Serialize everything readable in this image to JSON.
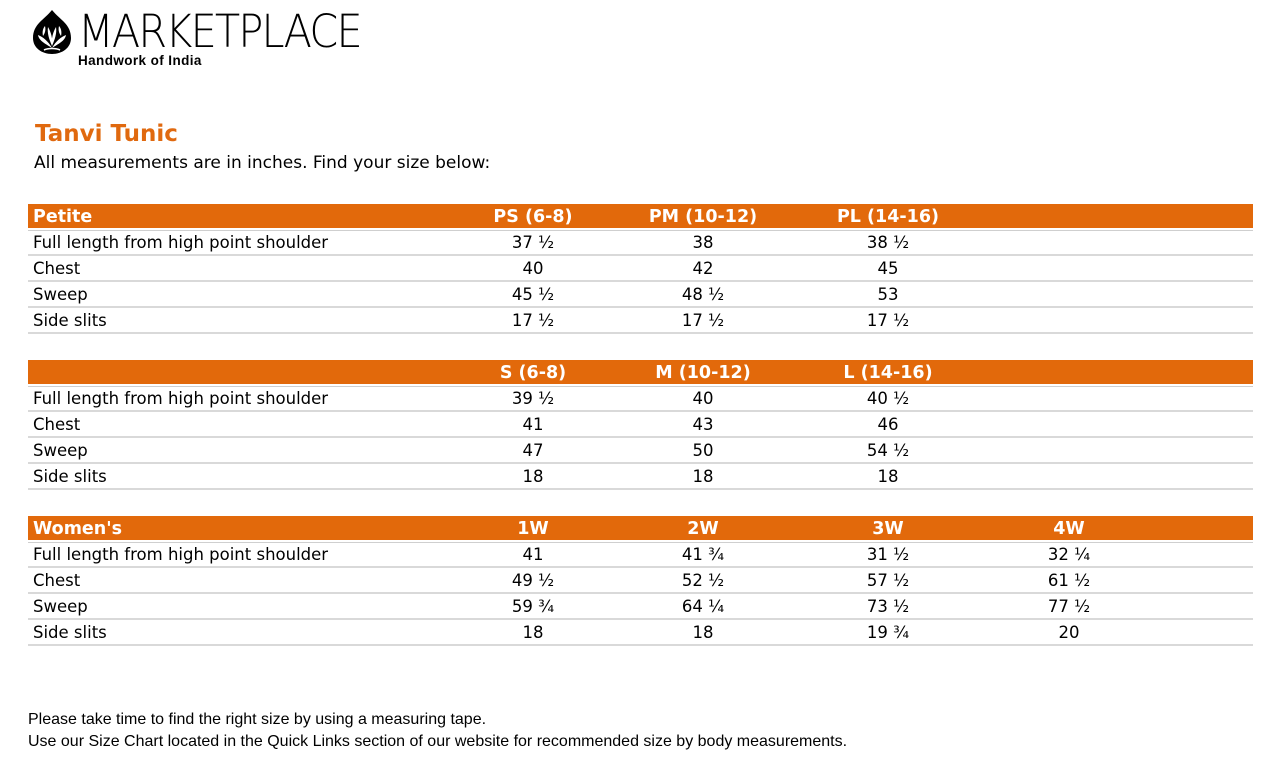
{
  "brand": {
    "name": "MARKETPLACE",
    "tagline": "Handwork of India",
    "logo_icon": "lotus-leaf-icon"
  },
  "page": {
    "title": "Tanvi Tunic",
    "subtitle": "All measurements are in inches. Find your size below:"
  },
  "colors": {
    "accent": "#e2690b",
    "title": "#e0690f",
    "row_border": "#d9d9d9"
  },
  "tables": [
    {
      "section": "Petite",
      "sizes": [
        "PS (6-8)",
        "PM (10-12)",
        "PL (14-16)"
      ],
      "rows": [
        {
          "label": "Full length from high point shoulder",
          "values": [
            "37 ½",
            "38",
            "38 ½"
          ]
        },
        {
          "label": "Chest",
          "values": [
            "40",
            "42",
            "45"
          ]
        },
        {
          "label": "Sweep",
          "values": [
            "45 ½",
            "48 ½",
            "53"
          ]
        },
        {
          "label": "Side slits",
          "values": [
            "17 ½",
            "17 ½",
            "17 ½"
          ]
        }
      ]
    },
    {
      "section": "",
      "sizes": [
        "S (6-8)",
        "M (10-12)",
        "L (14-16)"
      ],
      "rows": [
        {
          "label": "Full length from high point shoulder",
          "values": [
            "39 ½",
            "40",
            "40 ½"
          ]
        },
        {
          "label": "Chest",
          "values": [
            "41",
            "43",
            "46"
          ]
        },
        {
          "label": "Sweep",
          "values": [
            "47",
            "50",
            "54 ½"
          ]
        },
        {
          "label": "Side slits",
          "values": [
            "18",
            "18",
            "18"
          ]
        }
      ]
    },
    {
      "section": "Women's",
      "sizes": [
        "1W",
        "2W",
        "3W",
        "4W"
      ],
      "rows": [
        {
          "label": "Full length from high point shoulder",
          "values": [
            "41",
            "41 ¾",
            "31 ½",
            "32 ¼"
          ]
        },
        {
          "label": "Chest",
          "values": [
            "49 ½",
            "52 ½",
            "57 ½",
            "61 ½"
          ]
        },
        {
          "label": "Sweep",
          "values": [
            "59 ¾",
            "64 ¼",
            "73 ½",
            "77 ½"
          ]
        },
        {
          "label": "Side slits",
          "values": [
            "18",
            "18",
            "19 ¾",
            "20"
          ]
        }
      ]
    }
  ],
  "notes": [
    "Please take time to find the right size by using a measuring tape.",
    "Use our Size Chart located in the Quick Links section of our website for recommended size by body measurements."
  ]
}
